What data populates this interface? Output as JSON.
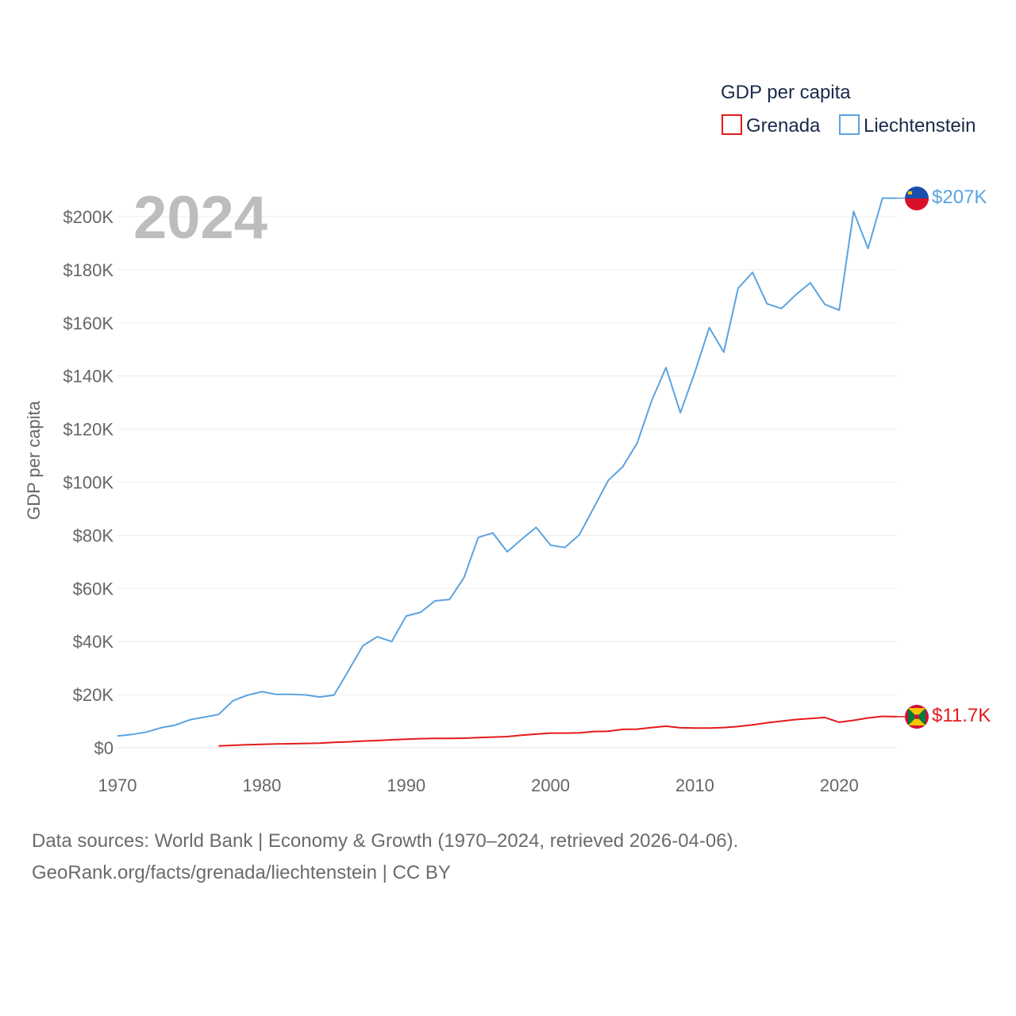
{
  "chart_data": {
    "type": "line",
    "year_label": "2024",
    "ylabel": "GDP per capita",
    "xlim": [
      1970,
      2024
    ],
    "ylim": [
      0,
      207000
    ],
    "x_ticks": [
      1970,
      1980,
      1990,
      2000,
      2010,
      2020
    ],
    "x_tick_labels": [
      "1970",
      "1980",
      "1990",
      "2000",
      "2010",
      "2020"
    ],
    "y_ticks": [
      0,
      20000,
      40000,
      60000,
      80000,
      100000,
      120000,
      140000,
      160000,
      180000,
      200000
    ],
    "y_tick_labels": [
      "$0",
      "$20K",
      "$40K",
      "$60K",
      "$80K",
      "$100K",
      "$120K",
      "$140K",
      "$160K",
      "$180K",
      "$200K"
    ],
    "legend": {
      "title": "GDP per capita",
      "position": "top-right",
      "entries": [
        "Grenada",
        "Liechtenstein"
      ]
    },
    "series": [
      {
        "name": "Liechtenstein",
        "color": "#5ba3e0",
        "end_label": "$207K",
        "flag": "liechtenstein-flag",
        "x": [
          1970,
          1971,
          1972,
          1973,
          1974,
          1975,
          1976,
          1977,
          1978,
          1979,
          1980,
          1981,
          1982,
          1983,
          1984,
          1985,
          1986,
          1987,
          1988,
          1989,
          1990,
          1991,
          1992,
          1993,
          1994,
          1995,
          1996,
          1997,
          1998,
          1999,
          2000,
          2001,
          2002,
          2003,
          2004,
          2005,
          2006,
          2007,
          2008,
          2009,
          2010,
          2011,
          2012,
          2013,
          2014,
          2015,
          2016,
          2017,
          2018,
          2019,
          2020,
          2021,
          2022,
          2023,
          2024
        ],
        "values": [
          4400,
          5000,
          5900,
          7500,
          8500,
          10500,
          11500,
          12500,
          17700,
          19800,
          21100,
          20100,
          20100,
          19900,
          19100,
          19800,
          29000,
          38400,
          41800,
          40000,
          49600,
          51000,
          55300,
          55800,
          64000,
          79200,
          80900,
          73800,
          78500,
          83000,
          76300,
          75400,
          80200,
          90400,
          100700,
          105800,
          114700,
          130600,
          143200,
          126200,
          141400,
          158200,
          149000,
          173100,
          179000,
          167200,
          165400,
          170600,
          175100,
          167000,
          164800,
          202000,
          188000,
          207000,
          207000
        ]
      },
      {
        "name": "Grenada",
        "color": "#e31b1b",
        "end_label": "$11.7K",
        "flag": "grenada-flag",
        "x": [
          1977,
          1978,
          1979,
          1980,
          1981,
          1982,
          1983,
          1984,
          1985,
          1986,
          1987,
          1988,
          1989,
          1990,
          1991,
          1992,
          1993,
          1994,
          1995,
          1996,
          1997,
          1998,
          1999,
          2000,
          2001,
          2002,
          2003,
          2004,
          2005,
          2006,
          2007,
          2008,
          2009,
          2010,
          2011,
          2012,
          2013,
          2014,
          2015,
          2016,
          2017,
          2018,
          2019,
          2020,
          2021,
          2022,
          2023,
          2024
        ],
        "values": [
          700,
          900,
          1100,
          1300,
          1400,
          1500,
          1600,
          1700,
          2000,
          2200,
          2500,
          2700,
          3000,
          3200,
          3400,
          3500,
          3500,
          3600,
          3800,
          4000,
          4200,
          4700,
          5100,
          5500,
          5500,
          5600,
          6100,
          6200,
          6900,
          7000,
          7600,
          8100,
          7500,
          7400,
          7400,
          7600,
          8000,
          8600,
          9400,
          10000,
          10600,
          11000,
          11400,
          9600,
          10300,
          11200,
          11800,
          11700
        ]
      }
    ]
  },
  "source": {
    "line1": "Data sources: World Bank | Economy & Growth (1970–2024, retrieved 2026-04-06).",
    "line2": "GeoRank.org/facts/grenada/liechtenstein | CC BY"
  }
}
